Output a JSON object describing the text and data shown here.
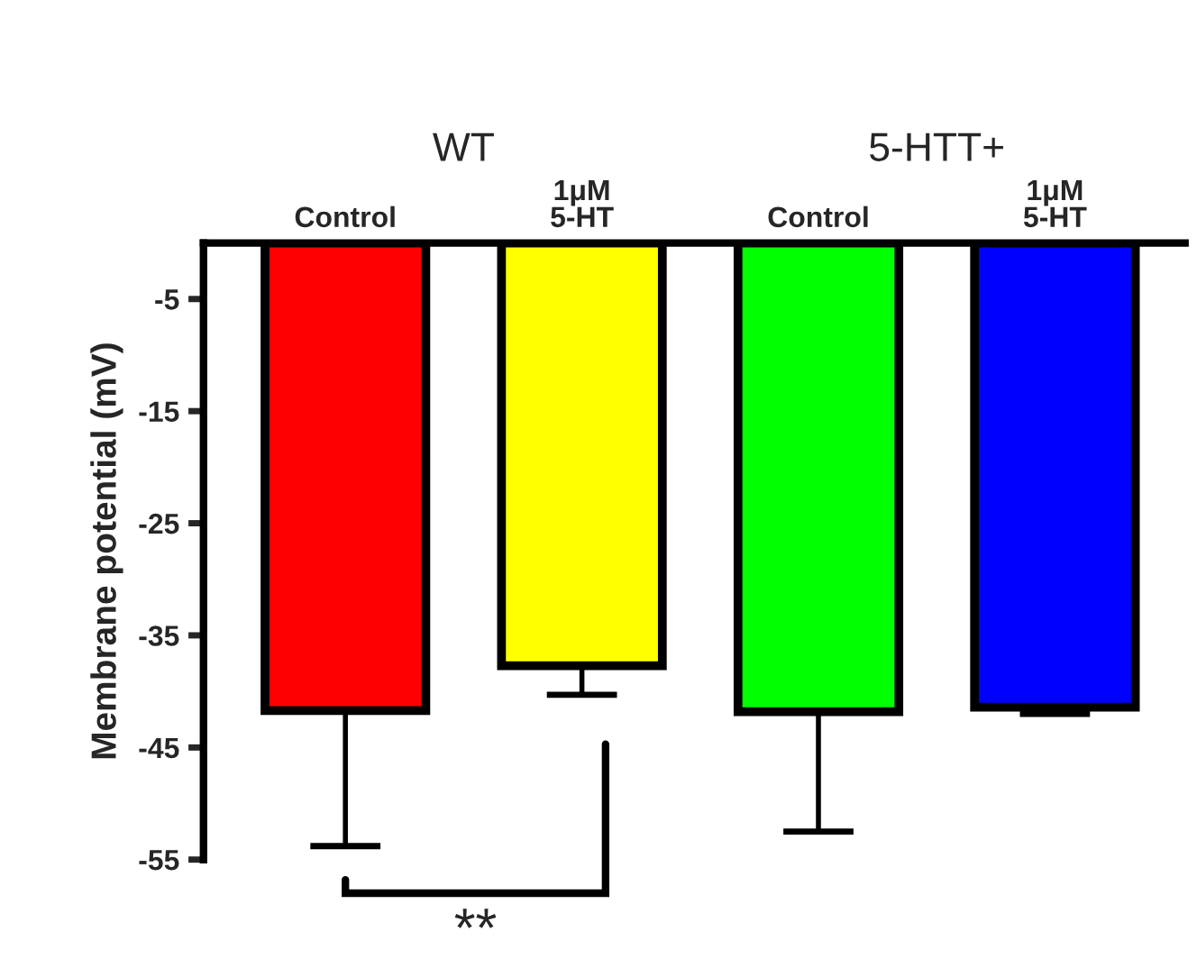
{
  "chart_data": {
    "type": "bar",
    "ylabel": "Membrane potential (mV)",
    "categories": [
      "Control",
      "1μM\n5-HT",
      "Control",
      "1μM\n5-HT"
    ],
    "values": [
      -41.7,
      -37.7,
      -41.8,
      -41.4
    ],
    "errors": [
      [
        -53.8,
        -41.7
      ],
      [
        -40.3,
        -37.7
      ],
      [
        -52.5,
        -41.8
      ],
      [
        -42.0,
        -41.4
      ]
    ],
    "colors": [
      "#ff0000",
      "#ffff00",
      "#00ff00",
      "#0000ff"
    ],
    "ylim": [
      -55,
      0
    ],
    "yticks": [
      -5,
      -15,
      -25,
      -35,
      -45,
      -55
    ],
    "grid": false,
    "annotations": [
      "WT",
      "5-HTT+",
      "**"
    ]
  }
}
